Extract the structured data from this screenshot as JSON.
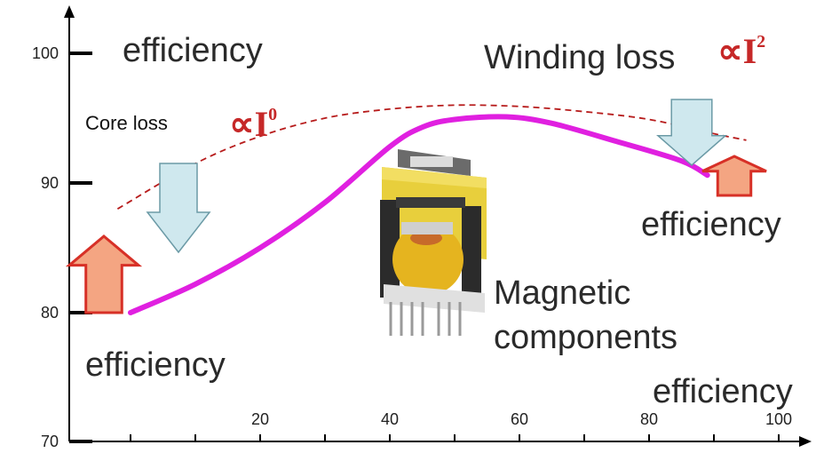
{
  "chart_data": {
    "type": "line",
    "title": "",
    "xlabel": "",
    "ylabel": "",
    "xlim": [
      0,
      110
    ],
    "ylim": [
      70,
      102
    ],
    "x_ticks": [
      20,
      40,
      60,
      80,
      100
    ],
    "y_ticks": [
      70,
      80,
      90,
      100
    ],
    "series": [
      {
        "style": "solid",
        "color": "#e020e0",
        "points": [
          [
            0,
            80
          ],
          [
            10,
            82.2
          ],
          [
            20,
            85
          ],
          [
            30,
            88.5
          ],
          [
            40,
            92.8
          ],
          [
            45,
            94.3
          ],
          [
            50,
            94.9
          ],
          [
            58,
            95.1
          ],
          [
            65,
            94.6
          ],
          [
            75,
            93.2
          ],
          [
            85,
            91.7
          ],
          [
            89,
            90.6
          ]
        ]
      },
      {
        "style": "dashed",
        "color": "#b71c1c",
        "points": [
          [
            -2,
            88
          ],
          [
            10,
            91.5
          ],
          [
            20,
            93.6
          ],
          [
            30,
            95.0
          ],
          [
            40,
            95.7
          ],
          [
            50,
            96.0
          ],
          [
            60,
            95.9
          ],
          [
            70,
            95.5
          ],
          [
            80,
            94.9
          ],
          [
            90,
            93.8
          ],
          [
            95,
            93.3
          ]
        ]
      }
    ],
    "annotations": {
      "efficiency_top_left": "efficiency",
      "core_loss": "Core  loss",
      "core_prop_symbol": "∝I",
      "core_prop_exp": "0",
      "winding_loss": "Winding loss",
      "winding_prop_symbol": "∝I",
      "winding_prop_exp": "2",
      "efficiency_right": "efficiency",
      "efficiency_bottom_left": "efficiency",
      "efficiency_bottom_right": "efficiency",
      "magnetic_components": "Magnetic\ncomponents"
    },
    "arrow_colors": {
      "up_fill": "#f4a582",
      "up_stroke": "#d73027",
      "down_fill": "#cfe8ee",
      "down_stroke": "#6b9aa6"
    }
  }
}
